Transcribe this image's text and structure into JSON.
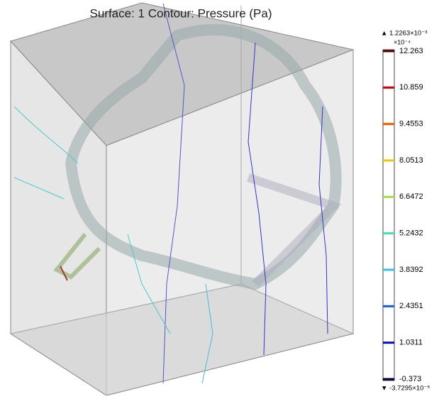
{
  "title": "Surface: 1 Contour: Pressure (Pa)",
  "colorbar": {
    "max_label": "▲ 1.2263×10⁻³",
    "multiplier": "×10⁻⁴",
    "min_label": "▼ -3.7295×10⁻⁵",
    "ticks": [
      {
        "label": "12.263",
        "color": "#5a0000"
      },
      {
        "label": "10.859",
        "color": "#d00000"
      },
      {
        "label": "9.4553",
        "color": "#f05a00"
      },
      {
        "label": "8.0513",
        "color": "#f0c800"
      },
      {
        "label": "6.6472",
        "color": "#a0e040"
      },
      {
        "label": "5.2432",
        "color": "#40e0b0"
      },
      {
        "label": "3.8392",
        "color": "#30c0e8"
      },
      {
        "label": "2.4351",
        "color": "#1060e0"
      },
      {
        "label": "1.0311",
        "color": "#0010c0"
      },
      {
        "label": "-0.373",
        "color": "#00004a"
      }
    ]
  }
}
